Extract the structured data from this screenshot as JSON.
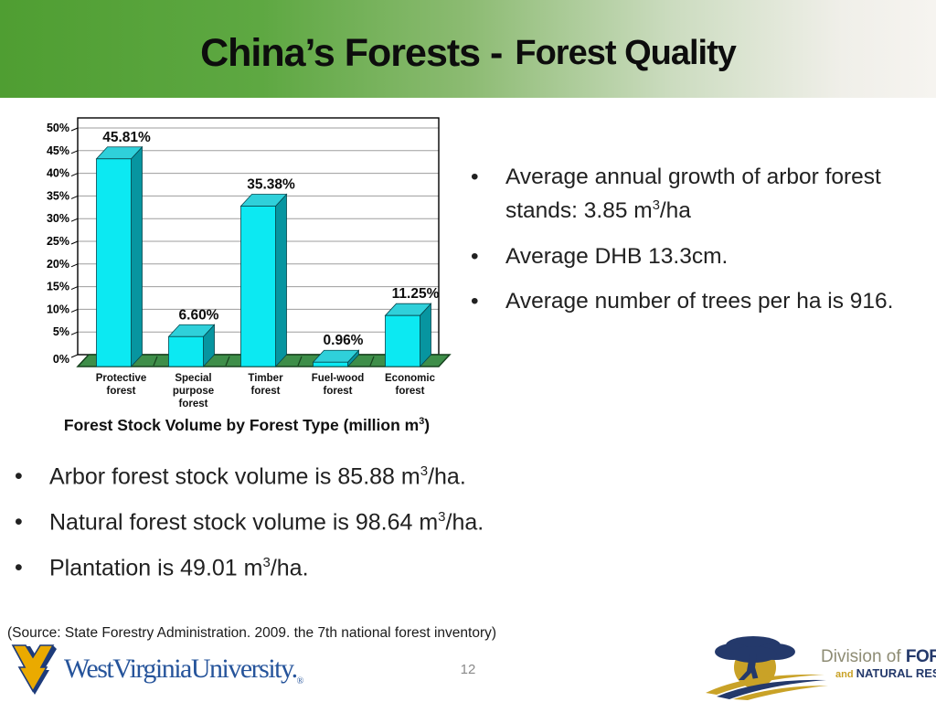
{
  "slide": {
    "title_main": "China’s Forests -",
    "title_sub": "Forest Quality",
    "page_number": "12",
    "source_note": "(Source: State Forestry Administration. 2009. the 7th national forest inventory)"
  },
  "chart_data": {
    "type": "bar",
    "style_3d": true,
    "title_parts": {
      "pre": "Forest Stock Volume by Forest Type (million m",
      "sup": "3",
      "post": ")"
    },
    "categories": [
      "Protective forest",
      "Special purpose forest",
      "Timber forest",
      "Fuel-wood forest",
      "Economic forest"
    ],
    "category_label_lines": [
      [
        "Protective",
        "forest"
      ],
      [
        "Special",
        "purpose",
        "forest"
      ],
      [
        "Timber",
        "forest"
      ],
      [
        "Fuel-wood",
        "forest"
      ],
      [
        "Economic",
        "forest"
      ]
    ],
    "values": [
      45.81,
      6.6,
      35.38,
      0.96,
      11.25
    ],
    "value_labels": [
      "45.81%",
      "6.60%",
      "35.38%",
      "0.96%",
      "11.25%"
    ],
    "y_tick_labels": [
      "0%",
      "5%",
      "10%",
      "15%",
      "20%",
      "25%",
      "30%",
      "35%",
      "40%",
      "45%",
      "50%"
    ],
    "ylim": [
      0,
      50
    ],
    "grid": true,
    "legend": "none",
    "colors": {
      "bar_front": "#0ce9f2",
      "bar_side": "#0795a0",
      "bar_top": "#2fd0da",
      "bar_edge": "#06454c",
      "floor": "#3e8e49",
      "floor_edge": "#17421e",
      "gridline": "#9d9d9d",
      "wall_border": "#000000",
      "label_color": "#0d0d0d"
    }
  },
  "right_bullets": [
    {
      "pre": "Average annual growth of arbor forest stands: 3.85 m",
      "sup": "3",
      "post": "/ha"
    },
    {
      "pre": "Average DHB 13.3cm.",
      "sup": "",
      "post": ""
    },
    {
      "pre": "Average number of trees per ha is 916.",
      "sup": "",
      "post": ""
    }
  ],
  "bottom_bullets": [
    {
      "pre": "Arbor forest stock volume is 85.88 m",
      "sup": "3",
      "post": "/ha."
    },
    {
      "pre": "Natural forest stock volume is 98.64 m",
      "sup": "3",
      "post": "/ha."
    },
    {
      "pre": "Plantation is 49.01 m",
      "sup": "3",
      "post": "/ha."
    }
  ],
  "bullet_glyph": "•",
  "footer": {
    "wvu": {
      "wordmark": "WestVirginiaUniversity.",
      "reg": "®",
      "gold": "#eaaa00",
      "navy": "#1d3b7a",
      "blue": "#26549b"
    },
    "forestry": {
      "line1_gray": "Division of ",
      "line1_bold": "FORESTRY",
      "line2_gold": "and ",
      "line2_bold": "NATURAL RESOURCES",
      "navy": "#24396b",
      "gold": "#c9a227"
    }
  }
}
